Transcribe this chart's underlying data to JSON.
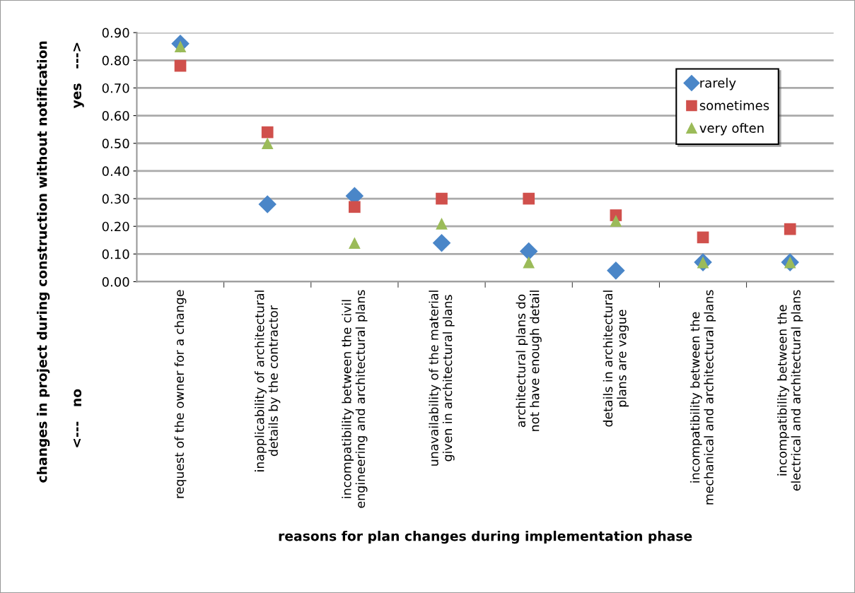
{
  "chart_data": {
    "type": "scatter",
    "xlabel": "reasons for plan changes during implementation phase",
    "ylabel": "changes in project during construction without notification",
    "annotations": [
      "yes   --->",
      "<---   no"
    ],
    "categories": [
      "request of the owner for a change",
      "inapplicability of architectural details by the contractor",
      "incompatibility between the civil engineering and architectural plans",
      "unavailability of the material given in architectural plans",
      "architectural plans do not have enough detail",
      "details in architectural plans are vague",
      "incompatibility between the mechanical and architectural plans",
      "incompatibility between the electrical and architectural plans"
    ],
    "series": [
      {
        "name": "rarely",
        "color": "#4a86c8",
        "marker": "diamond",
        "values": [
          0.86,
          0.28,
          0.31,
          0.14,
          0.11,
          0.04,
          0.07,
          0.07
        ]
      },
      {
        "name": "sometimes",
        "color": "#d0504c",
        "marker": "square",
        "values": [
          0.78,
          0.54,
          0.27,
          0.3,
          0.3,
          0.24,
          0.16,
          0.19
        ]
      },
      {
        "name": "very often",
        "color": "#9bbb59",
        "marker": "triangle",
        "values": [
          0.85,
          0.5,
          0.14,
          0.21,
          0.07,
          0.22,
          0.07,
          0.07
        ]
      }
    ],
    "ylim": [
      0,
      0.9
    ],
    "yticks": [
      {
        "value": 0,
        "label": "0.00"
      },
      {
        "value": 0.1,
        "label": "0.10"
      },
      {
        "value": 0.2,
        "label": "0.20"
      },
      {
        "value": 0.3,
        "label": "0.30"
      },
      {
        "value": 0.4,
        "label": "0.40"
      },
      {
        "value": 0.5,
        "label": "0.50"
      },
      {
        "value": 0.6,
        "label": "0.60"
      },
      {
        "value": 0.7,
        "label": "0.70"
      },
      {
        "value": 0.8,
        "label": "0.80"
      },
      {
        "value": 0.9,
        "label": "0.90"
      }
    ],
    "grid": "y",
    "legend": "top right"
  }
}
